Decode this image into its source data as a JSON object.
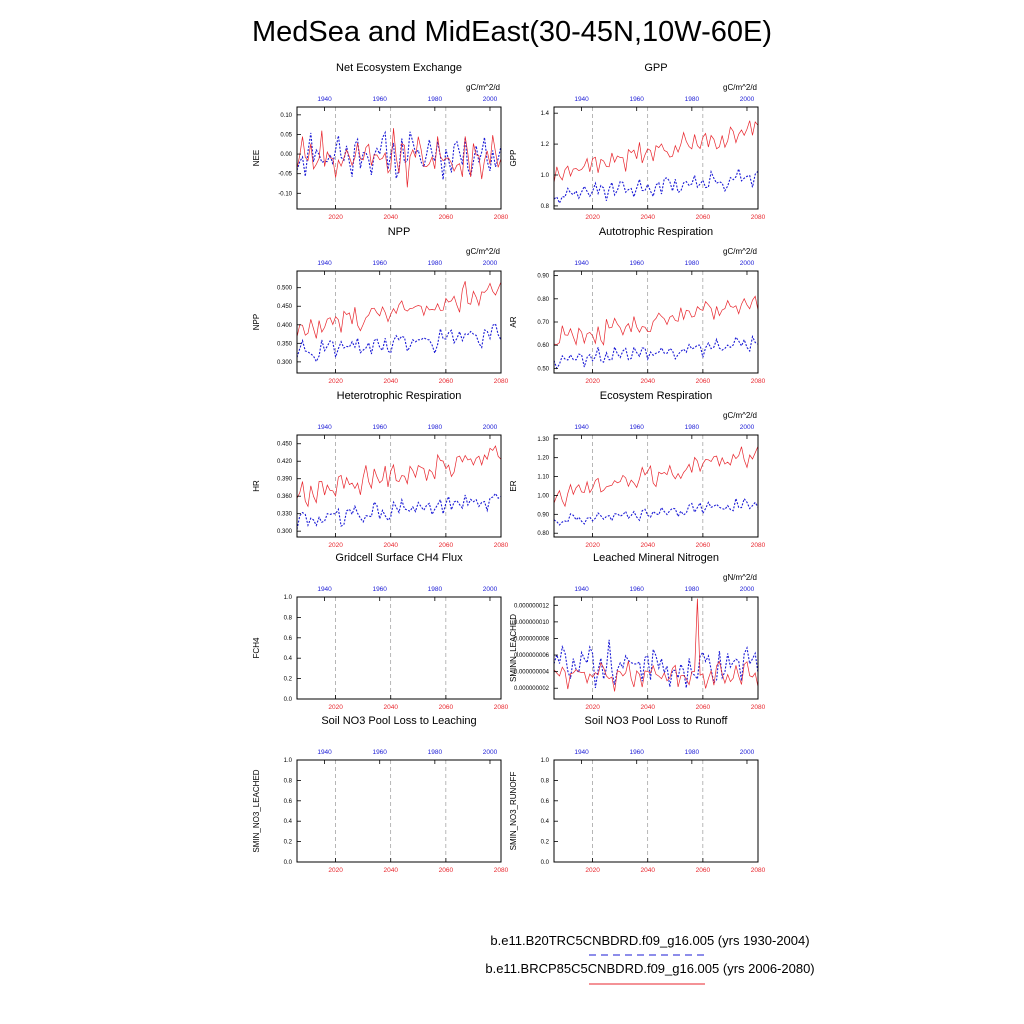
{
  "title": "MedSea and MidEast(30-45N,10W-60E)",
  "colors": {
    "historical": "#1b1bd6",
    "future": "#e8262d"
  },
  "legend": [
    {
      "label": "b.e11.B20TRC5CNBDRD.f09_g16.005 (yrs 1930-2004)",
      "color": "#1b1bd6",
      "style": "dashed"
    },
    {
      "label": "b.e11.BRCP85C5CNBDRD.f09_g16.005 (yrs 2006-2080)",
      "color": "#e8262d",
      "style": "solid"
    }
  ],
  "chart_data": [
    {
      "type": "line",
      "title": "Net Ecosystem Exchange",
      "ylabel": "NEE",
      "units": "gC/m^2/d",
      "ylim": [
        -0.14,
        0.12
      ],
      "yticks": [
        0.1,
        0.05,
        0.0,
        -0.05,
        -0.1
      ],
      "ytick_labels": [
        "0.10",
        "0.05",
        "0.00",
        "-0.05",
        "-0.10"
      ],
      "x_bottom": {
        "label_color": "#e8262d",
        "range": [
          2006,
          2080
        ],
        "ticks": [
          "2020",
          "2040",
          "2060",
          "2080"
        ]
      },
      "x_top": {
        "label_color": "#1b1bd6",
        "range": [
          1930,
          2004
        ],
        "ticks": [
          "1940",
          "1960",
          "1980",
          "2000"
        ]
      },
      "series": [
        {
          "name": "historical",
          "style": "dashed",
          "mean": 0.0,
          "amp": 0.045,
          "trend": 0.0,
          "seed": 11
        },
        {
          "name": "future",
          "style": "solid",
          "mean": -0.005,
          "amp": 0.055,
          "trend": 0.0,
          "seed": 23
        }
      ]
    },
    {
      "type": "line",
      "title": "GPP",
      "ylabel": "GPP",
      "units": "gC/m^2/d",
      "ylim": [
        0.78,
        1.44
      ],
      "yticks": [
        1.4,
        1.2,
        1.0,
        0.8
      ],
      "ytick_labels": [
        "1.4",
        "1.2",
        "1.0",
        "0.8"
      ],
      "x_bottom": {
        "label_color": "#e8262d",
        "range": [
          2006,
          2080
        ],
        "ticks": [
          "2020",
          "2040",
          "2060",
          "2080"
        ]
      },
      "x_top": {
        "label_color": "#1b1bd6",
        "range": [
          1930,
          2004
        ],
        "ticks": [
          "1940",
          "1960",
          "1980",
          "2000"
        ]
      },
      "series": [
        {
          "name": "historical",
          "style": "dashed",
          "mean": 0.87,
          "amp": 0.05,
          "trend": 0.11,
          "seed": 31
        },
        {
          "name": "future",
          "style": "solid",
          "mean": 1.02,
          "amp": 0.07,
          "trend": 0.27,
          "seed": 37
        }
      ]
    },
    {
      "type": "line",
      "title": "NPP",
      "ylabel": "NPP",
      "units": "gC/m^2/d",
      "ylim": [
        0.27,
        0.545
      ],
      "yticks": [
        0.5,
        0.45,
        0.4,
        0.35,
        0.3
      ],
      "ytick_labels": [
        "0.500",
        "0.450",
        "0.400",
        "0.350",
        "0.300"
      ],
      "x_bottom": {
        "label_color": "#e8262d",
        "range": [
          2006,
          2080
        ],
        "ticks": [
          "2020",
          "2040",
          "2060",
          "2080"
        ]
      },
      "x_top": {
        "label_color": "#1b1bd6",
        "range": [
          1930,
          2004
        ],
        "ticks": [
          "1940",
          "1960",
          "1980",
          "2000"
        ]
      },
      "series": [
        {
          "name": "historical",
          "style": "dashed",
          "mean": 0.325,
          "amp": 0.025,
          "trend": 0.05,
          "seed": 41
        },
        {
          "name": "future",
          "style": "solid",
          "mean": 0.39,
          "amp": 0.035,
          "trend": 0.1,
          "seed": 43
        }
      ]
    },
    {
      "type": "line",
      "title": "Autotrophic Respiration",
      "ylabel": "AR",
      "units": "gC/m^2/d",
      "ylim": [
        0.48,
        0.92
      ],
      "yticks": [
        0.9,
        0.8,
        0.7,
        0.6,
        0.5
      ],
      "ytick_labels": [
        "0.90",
        "0.80",
        "0.70",
        "0.60",
        "0.50"
      ],
      "x_bottom": {
        "label_color": "#e8262d",
        "range": [
          2006,
          2080
        ],
        "ticks": [
          "2020",
          "2040",
          "2060",
          "2080"
        ]
      },
      "x_top": {
        "label_color": "#1b1bd6",
        "range": [
          1930,
          2004
        ],
        "ticks": [
          "1940",
          "1960",
          "1980",
          "2000"
        ]
      },
      "series": [
        {
          "name": "historical",
          "style": "dashed",
          "mean": 0.54,
          "amp": 0.03,
          "trend": 0.07,
          "seed": 53
        },
        {
          "name": "future",
          "style": "solid",
          "mean": 0.62,
          "amp": 0.045,
          "trend": 0.17,
          "seed": 59
        }
      ]
    },
    {
      "type": "line",
      "title": "Heterotrophic Respiration",
      "ylabel": "HR",
      "units": "",
      "ylim": [
        0.29,
        0.465
      ],
      "yticks": [
        0.45,
        0.42,
        0.39,
        0.36,
        0.33,
        0.3
      ],
      "ytick_labels": [
        "0.450",
        "0.420",
        "0.390",
        "0.360",
        "0.330",
        "0.300"
      ],
      "x_bottom": {
        "label_color": "#e8262d",
        "range": [
          2006,
          2080
        ],
        "ticks": [
          "2020",
          "2040",
          "2060",
          "2080"
        ]
      },
      "x_top": {
        "label_color": "#1b1bd6",
        "range": [
          1930,
          2004
        ],
        "ticks": [
          "1940",
          "1960",
          "1980",
          "2000"
        ]
      },
      "series": [
        {
          "name": "historical",
          "style": "dashed",
          "mean": 0.318,
          "amp": 0.015,
          "trend": 0.035,
          "seed": 61
        },
        {
          "name": "future",
          "style": "solid",
          "mean": 0.365,
          "amp": 0.02,
          "trend": 0.07,
          "seed": 67
        }
      ]
    },
    {
      "type": "line",
      "title": "Ecosystem Respiration",
      "ylabel": "ER",
      "units": "gC/m^2/d",
      "ylim": [
        0.78,
        1.32
      ],
      "yticks": [
        1.3,
        1.2,
        1.1,
        1.0,
        0.9,
        0.8
      ],
      "ytick_labels": [
        "1.30",
        "1.20",
        "1.10",
        "1.00",
        "0.90",
        "0.80"
      ],
      "x_bottom": {
        "label_color": "#e8262d",
        "range": [
          2006,
          2080
        ],
        "ticks": [
          "2020",
          "2040",
          "2060",
          "2080"
        ]
      },
      "x_top": {
        "label_color": "#1b1bd6",
        "range": [
          1930,
          2004
        ],
        "ticks": [
          "1940",
          "1960",
          "1980",
          "2000"
        ]
      },
      "series": [
        {
          "name": "historical",
          "style": "dashed",
          "mean": 0.86,
          "amp": 0.03,
          "trend": 0.1,
          "seed": 71
        },
        {
          "name": "future",
          "style": "solid",
          "mean": 0.99,
          "amp": 0.05,
          "trend": 0.24,
          "seed": 73
        }
      ]
    },
    {
      "type": "line",
      "title": "Gridcell Surface CH4 Flux",
      "ylabel": "FCH4",
      "units": "",
      "ylim": [
        0.0,
        1.0
      ],
      "yticks": [
        1.0,
        0.8,
        0.6,
        0.4,
        0.2,
        0.0
      ],
      "ytick_labels": [
        "1.0",
        "0.8",
        "0.6",
        "0.4",
        "0.2",
        "0.0"
      ],
      "x_bottom": {
        "label_color": "#e8262d",
        "range": [
          2006,
          2080
        ],
        "ticks": [
          "2020",
          "2040",
          "2060",
          "2080"
        ]
      },
      "x_top": {
        "label_color": "#1b1bd6",
        "range": [
          1930,
          2004
        ],
        "ticks": [
          "1940",
          "1960",
          "1980",
          "2000"
        ]
      },
      "series": []
    },
    {
      "type": "line",
      "title": "Leached Mineral Nitrogen",
      "ylabel": "SMINN_LEACHED",
      "units": "gN/m^2/d",
      "ylim": [
        7e-10,
        1.3e-08
      ],
      "yticks": [
        1.2e-08,
        1e-08,
        8e-09,
        6e-09,
        4e-09,
        2e-09
      ],
      "ytick_labels": [
        "0.000000012",
        "0.000000010",
        "0.000000008",
        "0.000000006",
        "0.000000004",
        "0.000000002"
      ],
      "x_bottom": {
        "label_color": "#e8262d",
        "range": [
          2006,
          2080
        ],
        "ticks": [
          "2020",
          "2040",
          "2060",
          "2080"
        ]
      },
      "x_top": {
        "label_color": "#1b1bd6",
        "range": [
          1930,
          2004
        ],
        "ticks": [
          "1940",
          "1960",
          "1980",
          "2000"
        ]
      },
      "series": [
        {
          "name": "historical",
          "style": "dashed",
          "mean": 4.8e-09,
          "amp": 2.2e-09,
          "trend": 0.0,
          "seed": 83
        },
        {
          "name": "future",
          "style": "solid",
          "mean": 3.6e-09,
          "amp": 1.4e-09,
          "trend": 0.0,
          "seed": 89,
          "spike_year": 2058,
          "spike_value": 1.28e-08
        }
      ]
    },
    {
      "type": "line",
      "title": "Soil NO3 Pool Loss to Leaching",
      "ylabel": "SMIN_NO3_LEACHED",
      "units": "",
      "ylim": [
        0.0,
        1.0
      ],
      "yticks": [
        1.0,
        0.8,
        0.6,
        0.4,
        0.2,
        0.0
      ],
      "ytick_labels": [
        "1.0",
        "0.8",
        "0.6",
        "0.4",
        "0.2",
        "0.0"
      ],
      "x_bottom": {
        "label_color": "#e8262d",
        "range": [
          2006,
          2080
        ],
        "ticks": [
          "2020",
          "2040",
          "2060",
          "2080"
        ]
      },
      "x_top": {
        "label_color": "#1b1bd6",
        "range": [
          1930,
          2004
        ],
        "ticks": [
          "1940",
          "1960",
          "1980",
          "2000"
        ]
      },
      "series": []
    },
    {
      "type": "line",
      "title": "Soil NO3 Pool Loss to Runoff",
      "ylabel": "SMIN_NO3_RUNOFF",
      "units": "",
      "ylim": [
        0.0,
        1.0
      ],
      "yticks": [
        1.0,
        0.8,
        0.6,
        0.4,
        0.2,
        0.0
      ],
      "ytick_labels": [
        "1.0",
        "0.8",
        "0.6",
        "0.4",
        "0.2",
        "0.0"
      ],
      "x_bottom": {
        "label_color": "#e8262d",
        "range": [
          2006,
          2080
        ],
        "ticks": [
          "2020",
          "2040",
          "2060",
          "2080"
        ]
      },
      "x_top": {
        "label_color": "#1b1bd6",
        "range": [
          1930,
          2004
        ],
        "ticks": [
          "1940",
          "1960",
          "1980",
          "2000"
        ]
      },
      "series": []
    }
  ]
}
